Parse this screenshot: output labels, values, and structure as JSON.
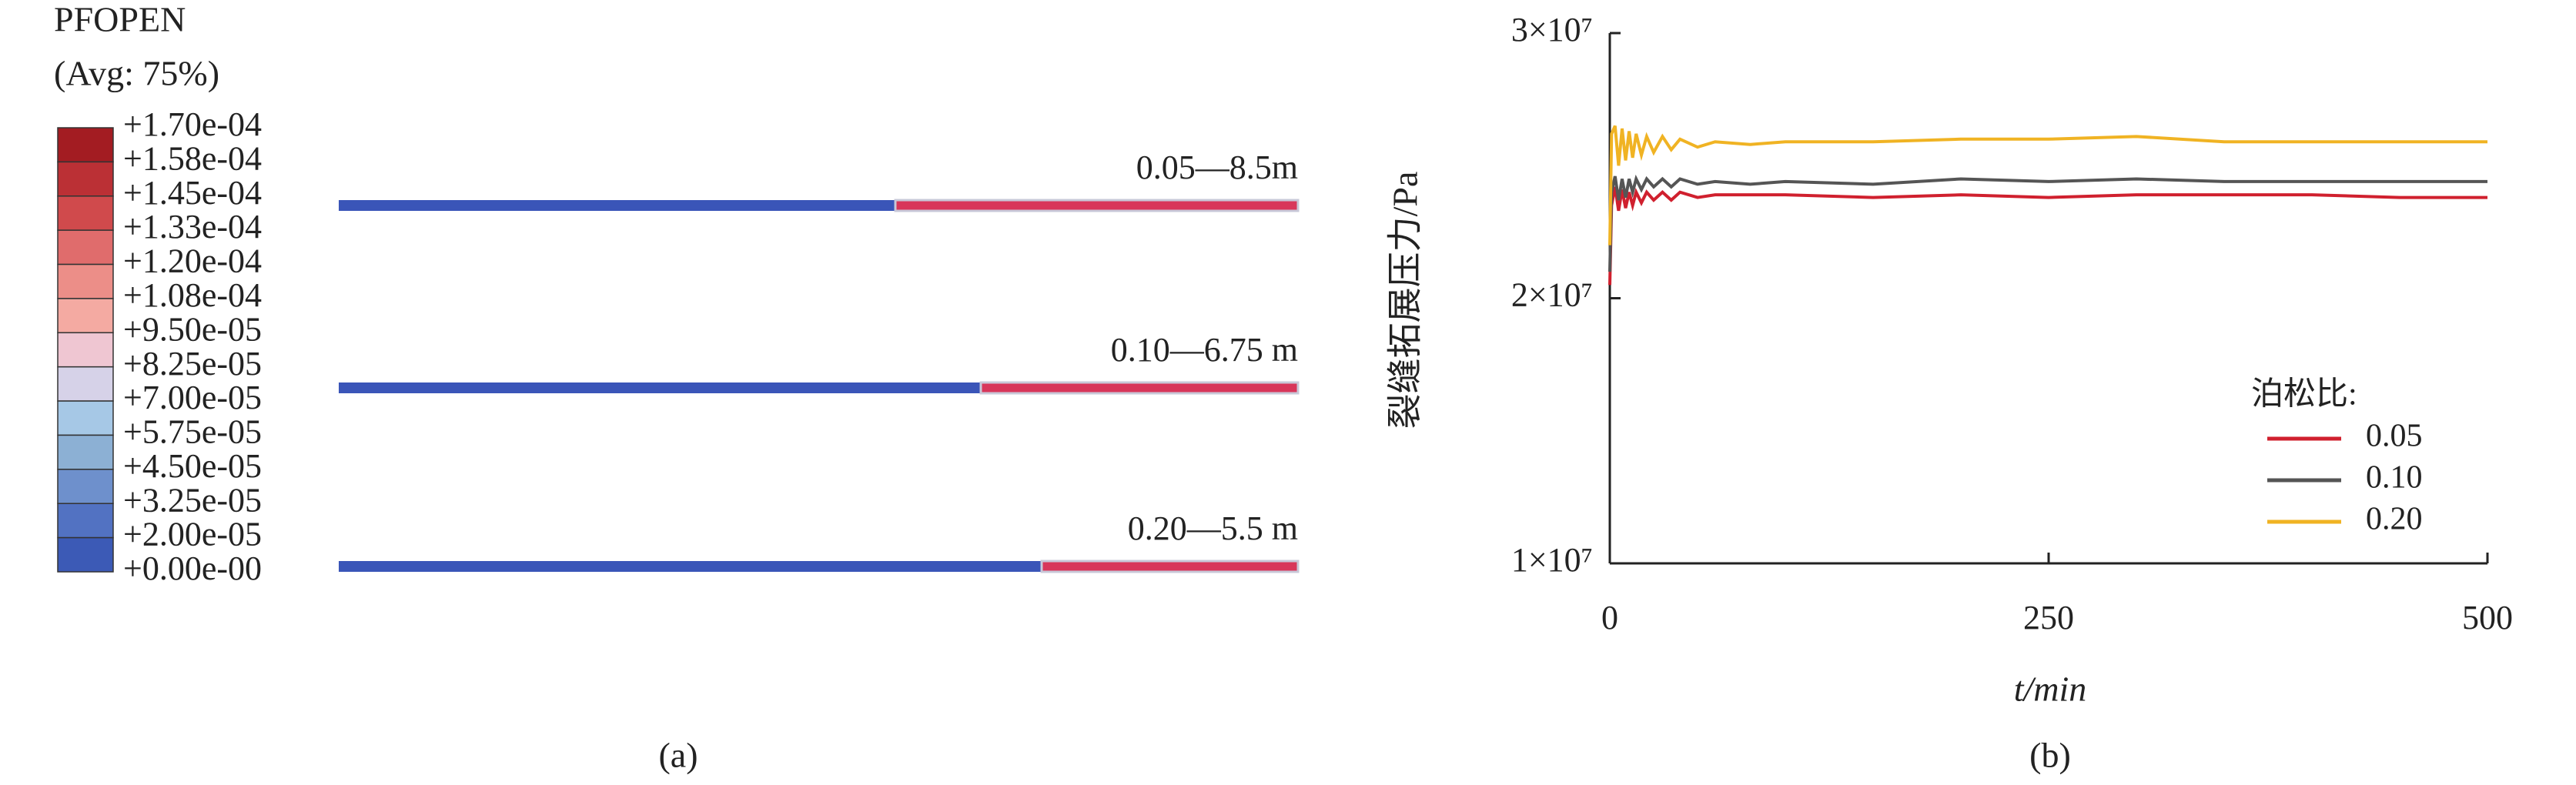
{
  "panel_a": {
    "title": "PFOPEN",
    "subtitle": "(Avg: 75%)",
    "levels": [
      "+1.70e-04",
      "+1.58e-04",
      "+1.45e-04",
      "+1.33e-04",
      "+1.20e-04",
      "+1.08e-04",
      "+9.50e-05",
      "+8.25e-05",
      "+7.00e-05",
      "+5.75e-05",
      "+4.50e-05",
      "+3.25e-05",
      "+2.00e-05",
      "+0.00e-00"
    ],
    "colors": [
      "#a31c22",
      "#bb3035",
      "#d04a4c",
      "#e06c6c",
      "#ec8e88",
      "#f4aaa2",
      "#efc6d2",
      "#d6d2e8",
      "#a6c8e6",
      "#8cb0d4",
      "#6e90cc",
      "#5272c2",
      "#3c5ab6"
    ],
    "fractures": [
      "0.05—8.5m",
      "0.10—6.75 m",
      "0.20—5.5 m"
    ],
    "caption": "(a)"
  },
  "chart_data": {
    "type": "line",
    "caption": "(b)",
    "x_label": "t/min",
    "y_label": "裂缝拓展压力/Pa",
    "legend_title": "泊松比:",
    "x": [
      0,
      1,
      3,
      5,
      7,
      9,
      11,
      13,
      15,
      18,
      21,
      25,
      30,
      35,
      40,
      50,
      60,
      80,
      100,
      150,
      200,
      250,
      300,
      350,
      400,
      450,
      500
    ],
    "series": [
      {
        "name": "0.05",
        "color": "#d0202e",
        "values": [
          20500000,
          23500000,
          24200000,
          23300000,
          24100000,
          23400000,
          24000000,
          23500000,
          24000000,
          23600000,
          24000000,
          23700000,
          24000000,
          23700000,
          24000000,
          23800000,
          23900000,
          23900000,
          23900000,
          23800000,
          23900000,
          23800000,
          23900000,
          23900000,
          23900000,
          23800000,
          23800000
        ]
      },
      {
        "name": "0.10",
        "color": "#555555",
        "values": [
          21000000,
          24000000,
          24600000,
          23700000,
          24500000,
          23800000,
          24500000,
          24000000,
          24500000,
          24100000,
          24500000,
          24200000,
          24500000,
          24200000,
          24500000,
          24300000,
          24400000,
          24300000,
          24400000,
          24300000,
          24500000,
          24400000,
          24500000,
          24400000,
          24400000,
          24400000,
          24400000
        ]
      },
      {
        "name": "0.20",
        "color": "#f0b323",
        "values": [
          22000000,
          26200000,
          26500000,
          25000000,
          26400000,
          25200000,
          26300000,
          25300000,
          26200000,
          25400000,
          26100000,
          25500000,
          26100000,
          25600000,
          26000000,
          25700000,
          25900000,
          25800000,
          25900000,
          25900000,
          26000000,
          26000000,
          26100000,
          25900000,
          25900000,
          25900000,
          25900000
        ]
      }
    ],
    "xlim": [
      0,
      500
    ],
    "xticks": [
      0,
      250,
      500
    ],
    "ylim": [
      10000000,
      30000000
    ],
    "yticks": [
      {
        "value": 10000000,
        "label": "1×10⁷"
      },
      {
        "value": 20000000,
        "label": "2×10⁷"
      },
      {
        "value": 30000000,
        "label": "3×10⁷"
      }
    ],
    "legend": "lower right"
  }
}
